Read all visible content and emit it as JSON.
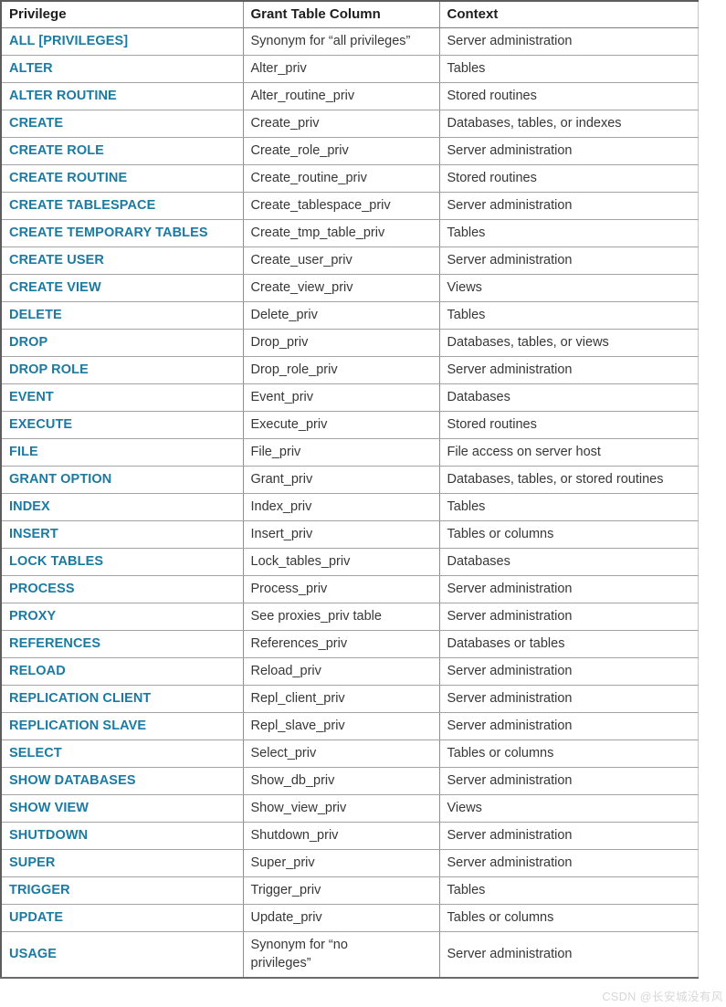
{
  "colors": {
    "link_teal": "#1b7aa2",
    "header_text": "#1d1d1d",
    "body_text": "#373737",
    "border_gray": "#8f8f8f",
    "watermark_gray": "#d7d7d7"
  },
  "watermark": "CSDN @长安城没有风",
  "table": {
    "headers": [
      "Privilege",
      "Grant Table Column",
      "Context"
    ],
    "rows": [
      {
        "privilege": "ALL [PRIVILEGES]",
        "column": "Synonym for “all privileges”",
        "context": "Server administration"
      },
      {
        "privilege": "ALTER",
        "column": "Alter_priv",
        "context": "Tables"
      },
      {
        "privilege": "ALTER ROUTINE",
        "column": "Alter_routine_priv",
        "context": "Stored routines"
      },
      {
        "privilege": "CREATE",
        "column": "Create_priv",
        "context": "Databases, tables, or indexes"
      },
      {
        "privilege": "CREATE ROLE",
        "column": "Create_role_priv",
        "context": "Server administration"
      },
      {
        "privilege": "CREATE ROUTINE",
        "column": "Create_routine_priv",
        "context": "Stored routines"
      },
      {
        "privilege": "CREATE TABLESPACE",
        "column": "Create_tablespace_priv",
        "context": "Server administration"
      },
      {
        "privilege": "CREATE TEMPORARY TABLES",
        "column": "Create_tmp_table_priv",
        "context": "Tables"
      },
      {
        "privilege": "CREATE USER",
        "column": "Create_user_priv",
        "context": "Server administration"
      },
      {
        "privilege": "CREATE VIEW",
        "column": "Create_view_priv",
        "context": "Views"
      },
      {
        "privilege": "DELETE",
        "column": "Delete_priv",
        "context": "Tables"
      },
      {
        "privilege": "DROP",
        "column": "Drop_priv",
        "context": "Databases, tables, or views"
      },
      {
        "privilege": "DROP ROLE",
        "column": "Drop_role_priv",
        "context": "Server administration"
      },
      {
        "privilege": "EVENT",
        "column": "Event_priv",
        "context": "Databases"
      },
      {
        "privilege": "EXECUTE",
        "column": "Execute_priv",
        "context": "Stored routines"
      },
      {
        "privilege": "FILE",
        "column": "File_priv",
        "context": "File access on server host"
      },
      {
        "privilege": "GRANT OPTION",
        "column": "Grant_priv",
        "context": "Databases, tables, or stored routines"
      },
      {
        "privilege": "INDEX",
        "column": "Index_priv",
        "context": "Tables"
      },
      {
        "privilege": "INSERT",
        "column": "Insert_priv",
        "context": "Tables or columns"
      },
      {
        "privilege": "LOCK TABLES",
        "column": "Lock_tables_priv",
        "context": "Databases"
      },
      {
        "privilege": "PROCESS",
        "column": "Process_priv",
        "context": "Server administration"
      },
      {
        "privilege": "PROXY",
        "column": "See proxies_priv table",
        "context": "Server administration"
      },
      {
        "privilege": "REFERENCES",
        "column": "References_priv",
        "context": "Databases or tables"
      },
      {
        "privilege": "RELOAD",
        "column": "Reload_priv",
        "context": "Server administration"
      },
      {
        "privilege": "REPLICATION CLIENT",
        "column": "Repl_client_priv",
        "context": "Server administration"
      },
      {
        "privilege": "REPLICATION SLAVE",
        "column": "Repl_slave_priv",
        "context": "Server administration"
      },
      {
        "privilege": "SELECT",
        "column": "Select_priv",
        "context": "Tables or columns"
      },
      {
        "privilege": "SHOW DATABASES",
        "column": "Show_db_priv",
        "context": "Server administration"
      },
      {
        "privilege": "SHOW VIEW",
        "column": "Show_view_priv",
        "context": "Views"
      },
      {
        "privilege": "SHUTDOWN",
        "column": "Shutdown_priv",
        "context": "Server administration"
      },
      {
        "privilege": "SUPER",
        "column": "Super_priv",
        "context": "Server administration"
      },
      {
        "privilege": "TRIGGER",
        "column": "Trigger_priv",
        "context": "Tables"
      },
      {
        "privilege": "UPDATE",
        "column": "Update_priv",
        "context": "Tables or columns"
      },
      {
        "privilege": "USAGE",
        "column": "Synonym for “no privileges”",
        "context": "Server administration",
        "wrap": true
      }
    ]
  }
}
